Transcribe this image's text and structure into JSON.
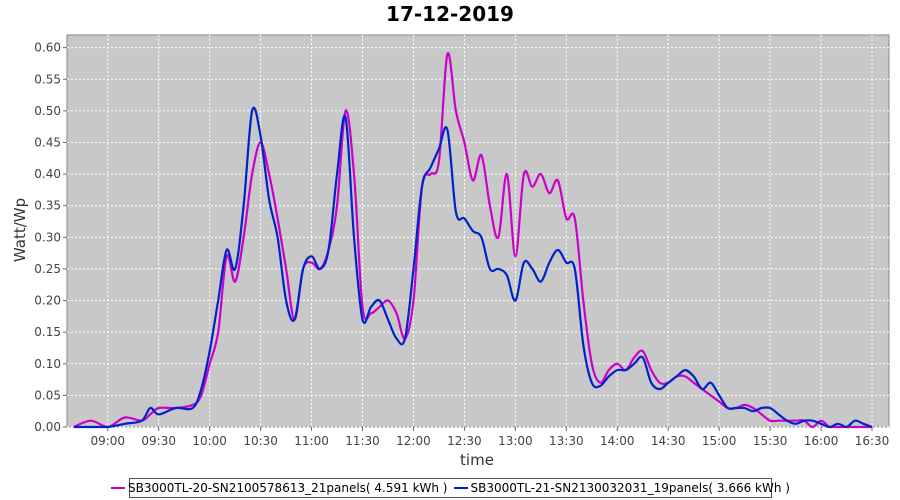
{
  "chart_data": {
    "type": "line",
    "title": "17-12-2019",
    "xlabel": "time",
    "ylabel": "Watt/Wp",
    "xlim": [
      "08:36",
      "16:40"
    ],
    "ylim": [
      0,
      0.62
    ],
    "x_ticks": [
      "09:00",
      "09:30",
      "10:00",
      "10:30",
      "11:00",
      "11:30",
      "12:00",
      "12:30",
      "13:00",
      "13:30",
      "14:00",
      "14:30",
      "15:00",
      "15:30",
      "16:00",
      "16:30"
    ],
    "y_ticks": [
      "0.00",
      "0.05",
      "0.10",
      "0.15",
      "0.20",
      "0.25",
      "0.30",
      "0.35",
      "0.40",
      "0.45",
      "0.50",
      "0.55",
      "0.60"
    ],
    "grid": true,
    "legend_position": "bottom",
    "series": [
      {
        "name": "SB3000TL-20-SN2100578613_21panels( 4.591 kWh )",
        "color": "#cc00cc",
        "x": [
          "08:40",
          "08:50",
          "09:00",
          "09:10",
          "09:20",
          "09:25",
          "09:30",
          "09:40",
          "09:50",
          "09:55",
          "10:00",
          "10:05",
          "10:10",
          "10:15",
          "10:20",
          "10:25",
          "10:30",
          "10:35",
          "10:40",
          "10:45",
          "10:50",
          "10:55",
          "11:00",
          "11:05",
          "11:10",
          "11:15",
          "11:20",
          "11:25",
          "11:30",
          "11:35",
          "11:40",
          "11:45",
          "11:50",
          "11:55",
          "12:00",
          "12:05",
          "12:10",
          "12:15",
          "12:20",
          "12:25",
          "12:30",
          "12:35",
          "12:40",
          "12:45",
          "12:50",
          "12:55",
          "13:00",
          "13:05",
          "13:10",
          "13:15",
          "13:20",
          "13:25",
          "13:30",
          "13:35",
          "13:40",
          "13:45",
          "13:50",
          "13:55",
          "14:00",
          "14:05",
          "14:10",
          "14:15",
          "14:20",
          "14:25",
          "14:30",
          "14:35",
          "14:40",
          "14:45",
          "14:50",
          "14:55",
          "15:00",
          "15:05",
          "15:10",
          "15:15",
          "15:20",
          "15:25",
          "15:30",
          "15:35",
          "15:40",
          "15:45",
          "15:50",
          "15:55",
          "16:00",
          "16:05",
          "16:10",
          "16:15",
          "16:20",
          "16:25",
          "16:30"
        ],
        "y": [
          0.0,
          0.01,
          0.0,
          0.015,
          0.01,
          0.02,
          0.03,
          0.03,
          0.035,
          0.05,
          0.1,
          0.15,
          0.27,
          0.23,
          0.3,
          0.4,
          0.45,
          0.4,
          0.33,
          0.25,
          0.17,
          0.25,
          0.26,
          0.25,
          0.28,
          0.35,
          0.5,
          0.4,
          0.19,
          0.18,
          0.19,
          0.2,
          0.18,
          0.14,
          0.2,
          0.38,
          0.4,
          0.42,
          0.59,
          0.5,
          0.45,
          0.39,
          0.43,
          0.35,
          0.3,
          0.4,
          0.27,
          0.4,
          0.38,
          0.4,
          0.37,
          0.39,
          0.33,
          0.33,
          0.2,
          0.1,
          0.07,
          0.09,
          0.1,
          0.09,
          0.11,
          0.12,
          0.09,
          0.07,
          0.07,
          0.08,
          0.08,
          0.07,
          0.06,
          0.05,
          0.04,
          0.03,
          0.03,
          0.035,
          0.03,
          0.02,
          0.01,
          0.01,
          0.01,
          0.01,
          0.01,
          0.0,
          0.01,
          0.0,
          0.0,
          0.0,
          0.0,
          0.0,
          0.0
        ]
      },
      {
        "name": "SB3000TL-21-SN2130032031_19panels( 3.666 kWh )",
        "color": "#0022cc",
        "x": [
          "08:40",
          "08:50",
          "09:00",
          "09:10",
          "09:20",
          "09:25",
          "09:30",
          "09:40",
          "09:50",
          "09:55",
          "10:00",
          "10:05",
          "10:10",
          "10:15",
          "10:20",
          "10:25",
          "10:30",
          "10:35",
          "10:40",
          "10:45",
          "10:50",
          "10:55",
          "11:00",
          "11:05",
          "11:10",
          "11:15",
          "11:20",
          "11:25",
          "11:30",
          "11:35",
          "11:40",
          "11:45",
          "11:50",
          "11:55",
          "12:00",
          "12:05",
          "12:10",
          "12:15",
          "12:20",
          "12:25",
          "12:30",
          "12:35",
          "12:40",
          "12:45",
          "12:50",
          "12:55",
          "13:00",
          "13:05",
          "13:10",
          "13:15",
          "13:20",
          "13:25",
          "13:30",
          "13:35",
          "13:40",
          "13:45",
          "13:50",
          "13:55",
          "14:00",
          "14:05",
          "14:10",
          "14:15",
          "14:20",
          "14:25",
          "14:30",
          "14:35",
          "14:40",
          "14:45",
          "14:50",
          "14:55",
          "15:00",
          "15:05",
          "15:10",
          "15:15",
          "15:20",
          "15:25",
          "15:30",
          "15:35",
          "15:40",
          "15:45",
          "15:50",
          "15:55",
          "16:00",
          "16:05",
          "16:10",
          "16:15",
          "16:20",
          "16:25",
          "16:30"
        ],
        "y": [
          0.0,
          0.0,
          0.0,
          0.005,
          0.01,
          0.03,
          0.02,
          0.03,
          0.03,
          0.06,
          0.12,
          0.2,
          0.28,
          0.25,
          0.35,
          0.5,
          0.46,
          0.36,
          0.3,
          0.2,
          0.17,
          0.25,
          0.27,
          0.25,
          0.28,
          0.4,
          0.49,
          0.3,
          0.17,
          0.19,
          0.2,
          0.17,
          0.14,
          0.14,
          0.25,
          0.38,
          0.41,
          0.44,
          0.47,
          0.34,
          0.33,
          0.31,
          0.3,
          0.25,
          0.25,
          0.24,
          0.2,
          0.26,
          0.25,
          0.23,
          0.26,
          0.28,
          0.26,
          0.25,
          0.13,
          0.07,
          0.065,
          0.08,
          0.09,
          0.09,
          0.1,
          0.11,
          0.07,
          0.06,
          0.07,
          0.08,
          0.09,
          0.08,
          0.06,
          0.07,
          0.05,
          0.03,
          0.03,
          0.03,
          0.025,
          0.03,
          0.03,
          0.02,
          0.01,
          0.005,
          0.01,
          0.01,
          0.005,
          0.0,
          0.005,
          0.0,
          0.01,
          0.005,
          0.0
        ]
      }
    ]
  }
}
